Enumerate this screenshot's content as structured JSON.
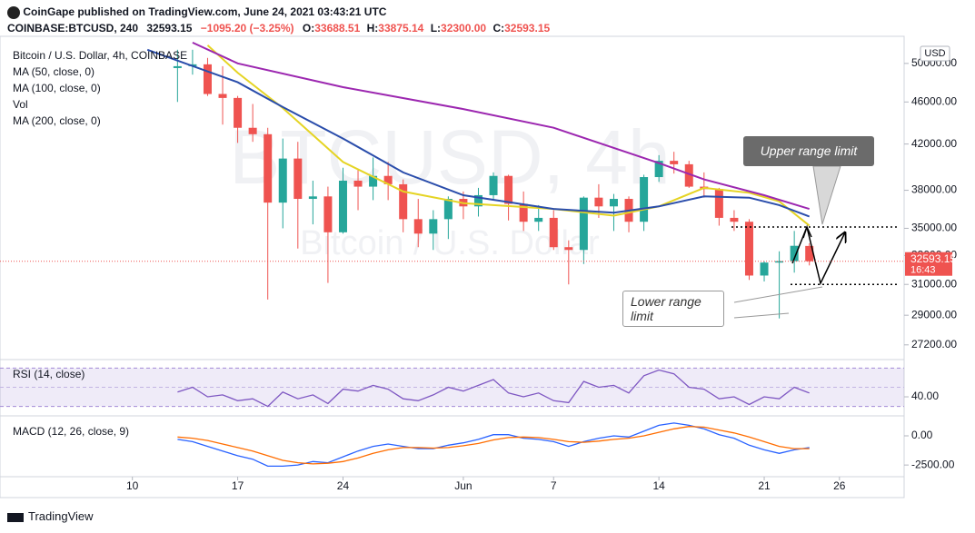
{
  "header": {
    "title": "CoinGape published on TradingView.com, June 24, 2021 03:43:21 UTC",
    "symbol": "COINBASE:BTCUSD, 240",
    "last": "32593.15",
    "change": "−1095.20 (−3.25%)",
    "quote": [
      {
        "label": "O:",
        "value": "33688.51"
      },
      {
        "label": "H:",
        "value": "33875.14"
      },
      {
        "label": "L:",
        "value": "32300.00"
      },
      {
        "label": "C:",
        "value": "32593.15"
      }
    ]
  },
  "footer": {
    "brand": "TradingView"
  },
  "chart_data": [
    {
      "type": "candlestick",
      "title": "Bitcoin / U.S. Dollar, 4h, COINBASE",
      "symbol_watermark": "BTCUSD, 4h",
      "name_watermark": "Bitcoin / U.S. Dollar",
      "currency": "USD",
      "x": [
        13,
        14,
        15,
        16,
        17,
        18,
        19,
        20,
        21,
        22,
        23,
        24,
        25,
        26,
        27,
        28,
        29,
        30,
        31,
        32,
        33,
        34,
        35,
        36,
        37,
        38,
        39,
        40,
        41,
        42,
        43,
        44,
        45,
        46,
        47,
        48,
        49,
        50,
        51,
        52,
        53,
        54,
        55
      ],
      "open": [
        49500,
        49700,
        49900,
        46800,
        46400,
        43500,
        42900,
        37000,
        40700,
        37300,
        37500,
        34700,
        38800,
        38300,
        39200,
        38500,
        35700,
        34600,
        35700,
        37300,
        36700,
        37600,
        39200,
        36900,
        35500,
        35800,
        33600,
        33400,
        37400,
        36700,
        37300,
        35500,
        39100,
        40500,
        40200,
        38300,
        38100,
        35800,
        35500,
        31600,
        32500,
        32600,
        33688.51
      ],
      "high": [
        51500,
        51500,
        50600,
        49700,
        46600,
        45800,
        43500,
        42500,
        42200,
        38800,
        38300,
        39900,
        39800,
        40800,
        40400,
        38900,
        37300,
        36400,
        37500,
        37900,
        38200,
        39500,
        39300,
        37900,
        36800,
        36400,
        34100,
        37500,
        38500,
        37700,
        37500,
        39300,
        41000,
        41300,
        40500,
        39500,
        38200,
        36400,
        35700,
        32600,
        33300,
        34800,
        33875.14
      ],
      "low": [
        46000,
        48800,
        46600,
        43800,
        42100,
        42200,
        30000,
        35000,
        33500,
        35300,
        31100,
        34600,
        36400,
        37200,
        37200,
        34700,
        33600,
        33400,
        34200,
        35700,
        35900,
        37200,
        35600,
        34800,
        34800,
        33400,
        31000,
        32400,
        35800,
        34800,
        34700,
        34800,
        38700,
        39400,
        38200,
        37400,
        35200,
        34800,
        31300,
        31200,
        28800,
        31800,
        32300
      ],
      "close": [
        49700,
        49900,
        46800,
        46400,
        43500,
        42900,
        37000,
        40700,
        37300,
        37500,
        34700,
        38800,
        38300,
        39200,
        38500,
        35700,
        34600,
        35700,
        37300,
        36700,
        37600,
        39200,
        36900,
        35500,
        35800,
        33600,
        33400,
        37400,
        36700,
        37300,
        35500,
        39100,
        40500,
        40200,
        38300,
        38100,
        35800,
        35500,
        31600,
        32500,
        32600,
        33700,
        32593.15
      ],
      "up_color": "#26a69a",
      "down_color": "#ef5350",
      "lines": [
        {
          "name": "MA (50, close, 0)",
          "color": "#e5d424",
          "x": [
            15,
            17,
            20,
            24,
            28,
            32,
            38,
            42,
            45,
            48,
            51,
            53,
            55
          ],
          "values": [
            52000,
            49000,
            45400,
            40400,
            37900,
            36960,
            36500,
            35970,
            36700,
            38200,
            37800,
            37100,
            35200
          ]
        },
        {
          "name": "MA (100, close, 0)",
          "color": "#2a4dab",
          "x": [
            11,
            17,
            20,
            24,
            28,
            32,
            38,
            42,
            45,
            48,
            51,
            53,
            55
          ],
          "values": [
            51500,
            48000,
            45500,
            42500,
            39500,
            37600,
            36500,
            36200,
            36700,
            37500,
            37400,
            36800,
            35900
          ]
        },
        {
          "name": "MA (200, close, 0)",
          "color": "#9c27b0",
          "x": [
            14,
            17,
            24,
            32,
            38,
            45,
            48,
            52,
            55
          ],
          "values": [
            52300,
            50000,
            47500,
            45300,
            43500,
            40300,
            38900,
            37600,
            36500
          ]
        }
      ],
      "volume_label": "Vol",
      "last_price": 32593.15,
      "countdown": "16:43",
      "range_levels": [
        35100,
        31000
      ],
      "annotations": [
        {
          "text": "Upper range limit"
        },
        {
          "text": "Lower range limit"
        }
      ],
      "xlim": [
        1.2,
        61.3
      ],
      "xticks": [
        {
          "value": 10,
          "label": "10"
        },
        {
          "value": 17,
          "label": "17"
        },
        {
          "value": 24,
          "label": "24"
        },
        {
          "value": 32,
          "label": "Jun"
        },
        {
          "value": 38,
          "label": "7"
        },
        {
          "value": 45,
          "label": "14"
        },
        {
          "value": 52,
          "label": "21"
        },
        {
          "value": 57,
          "label": "26"
        }
      ],
      "ylim": [
        26400,
        52500
      ],
      "log": true,
      "yticks": [
        {
          "value": 50000,
          "label": "50000.00"
        },
        {
          "value": 46000,
          "label": "46000.00"
        },
        {
          "value": 42000,
          "label": "42000.00"
        },
        {
          "value": 38000,
          "label": "38000.00"
        },
        {
          "value": 35000,
          "label": "35000.00"
        },
        {
          "value": 33000,
          "label": "33000.00"
        },
        {
          "value": 31000,
          "label": "31000.00"
        },
        {
          "value": 29000,
          "label": "29000.00"
        },
        {
          "value": 27200,
          "label": "27200.00"
        }
      ]
    },
    {
      "type": "line",
      "title": "RSI (14, close)",
      "color": "#7e57c2",
      "x": [
        13,
        14,
        15,
        16,
        17,
        18,
        19,
        20,
        21,
        22,
        23,
        24,
        25,
        26,
        27,
        28,
        29,
        30,
        31,
        32,
        33,
        34,
        35,
        36,
        37,
        38,
        39,
        40,
        41,
        42,
        43,
        44,
        45,
        46,
        47,
        48,
        49,
        50,
        51,
        52,
        53,
        54,
        55
      ],
      "values": [
        45,
        50,
        40,
        42,
        36,
        38,
        30,
        45,
        38,
        42,
        33,
        48,
        46,
        52,
        48,
        38,
        36,
        42,
        50,
        46,
        52,
        58,
        44,
        40,
        44,
        36,
        34,
        56,
        50,
        52,
        44,
        62,
        68,
        64,
        50,
        48,
        38,
        40,
        32,
        40,
        38,
        50,
        44
      ],
      "band": [
        30,
        70
      ],
      "midline": 50,
      "ylim": [
        23,
        76
      ],
      "yticks": [
        {
          "value": 40,
          "label": "40.00"
        }
      ]
    },
    {
      "type": "line",
      "title": "MACD (12, 26, close, 9)",
      "x": [
        13,
        14,
        15,
        16,
        17,
        18,
        19,
        20,
        21,
        22,
        23,
        24,
        25,
        26,
        27,
        28,
        29,
        30,
        31,
        32,
        33,
        34,
        35,
        36,
        37,
        38,
        39,
        40,
        41,
        42,
        43,
        44,
        45,
        46,
        47,
        48,
        49,
        50,
        51,
        52,
        53,
        54,
        55
      ],
      "series": [
        {
          "color": "#2962ff",
          "values": [
            -300,
            -500,
            -900,
            -1300,
            -1700,
            -2000,
            -2600,
            -2600,
            -2500,
            -2200,
            -2300,
            -1800,
            -1300,
            -900,
            -700,
            -900,
            -1100,
            -1100,
            -800,
            -600,
            -300,
            100,
            100,
            -200,
            -300,
            -500,
            -900,
            -500,
            -200,
            0,
            -100,
            400,
            900,
            1100,
            900,
            600,
            100,
            -200,
            -800,
            -1200,
            -1500,
            -1200,
            -1000
          ]
        },
        {
          "color": "#ff6d00",
          "values": [
            -100,
            -200,
            -400,
            -700,
            -1000,
            -1300,
            -1700,
            -2100,
            -2300,
            -2400,
            -2350,
            -2200,
            -1900,
            -1500,
            -1200,
            -1000,
            -1000,
            -1050,
            -1000,
            -850,
            -650,
            -350,
            -150,
            -100,
            -150,
            -300,
            -500,
            -550,
            -450,
            -300,
            -200,
            0,
            300,
            600,
            800,
            750,
            500,
            250,
            -100,
            -500,
            -900,
            -1100,
            -1100
          ]
        }
      ],
      "ylim": [
        -3500,
        1400
      ],
      "yticks": [
        {
          "value": 0,
          "label": "0.00"
        },
        {
          "value": -2500,
          "label": "-2500.00"
        }
      ]
    }
  ]
}
